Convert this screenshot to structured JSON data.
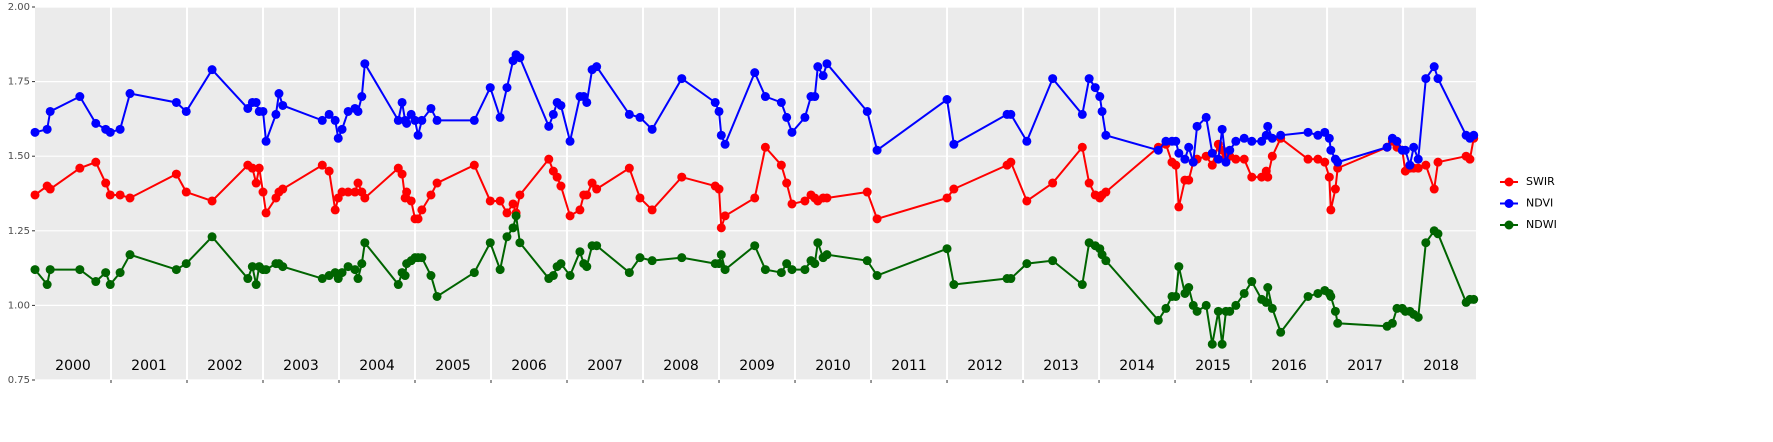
{
  "chart_data": {
    "type": "line",
    "x": [
      2000.0,
      2000.16,
      2000.2,
      2000.59,
      2000.8,
      2000.93,
      2000.99,
      2001.12,
      2001.25,
      2001.86,
      2001.99,
      2002.33,
      2002.8,
      2002.86,
      2002.91,
      2002.95,
      2003.0,
      2003.04,
      2003.17,
      2003.21,
      2003.26,
      2003.78,
      2003.87,
      2003.95,
      2003.99,
      2004.04,
      2004.12,
      2004.21,
      2004.25,
      2004.3,
      2004.34,
      2004.78,
      2004.83,
      2004.87,
      2004.89,
      2004.95,
      2005.0,
      2005.04,
      2005.09,
      2005.21,
      2005.29,
      2005.78,
      2005.99,
      2006.12,
      2006.21,
      2006.29,
      2006.33,
      2006.38,
      2006.76,
      2006.82,
      2006.87,
      2006.92,
      2007.04,
      2007.17,
      2007.22,
      2007.26,
      2007.33,
      2007.39,
      2007.82,
      2007.96,
      2008.12,
      2008.51,
      2008.95,
      2009.0,
      2009.03,
      2009.08,
      2009.47,
      2009.61,
      2009.82,
      2009.89,
      2009.96,
      2010.13,
      2010.21,
      2010.26,
      2010.3,
      2010.37,
      2010.42,
      2010.95,
      2011.08,
      2012.0,
      2012.09,
      2012.79,
      2012.84,
      2013.05,
      2013.39,
      2013.78,
      2013.87,
      2013.95,
      2014.01,
      2014.04,
      2014.09,
      2014.78,
      2014.88,
      2014.96,
      2015.01,
      2015.05,
      2015.13,
      2015.18,
      2015.24,
      2015.29,
      2015.41,
      2015.49,
      2015.57,
      2015.62,
      2015.67,
      2015.72,
      2015.8,
      2015.91,
      2016.01,
      2016.14,
      2016.2,
      2016.22,
      2016.28,
      2016.39,
      2016.75,
      2016.88,
      2016.97,
      2017.03,
      2017.05,
      2017.11,
      2017.14,
      2017.79,
      2017.86,
      2017.92,
      2017.99,
      2018.03,
      2018.09,
      2018.14,
      2018.2,
      2018.3,
      2018.41,
      2018.46,
      2018.83,
      2018.88,
      2018.93
    ],
    "series": [
      {
        "name": "SWIR",
        "color": "#ff0000",
        "values": [
          1.37,
          1.4,
          1.39,
          1.46,
          1.48,
          1.41,
          1.37,
          1.37,
          1.36,
          1.44,
          1.38,
          1.35,
          1.47,
          1.46,
          1.41,
          1.46,
          1.38,
          1.31,
          1.36,
          1.38,
          1.39,
          1.47,
          1.45,
          1.32,
          1.36,
          1.38,
          1.38,
          1.38,
          1.41,
          1.38,
          1.36,
          1.46,
          1.44,
          1.36,
          1.38,
          1.35,
          1.29,
          1.29,
          1.32,
          1.37,
          1.41,
          1.47,
          1.35,
          1.35,
          1.31,
          1.34,
          1.31,
          1.37,
          1.49,
          1.45,
          1.43,
          1.4,
          1.3,
          1.32,
          1.37,
          1.37,
          1.41,
          1.39,
          1.46,
          1.36,
          1.32,
          1.43,
          1.4,
          1.39,
          1.26,
          1.3,
          1.36,
          1.53,
          1.47,
          1.41,
          1.34,
          1.35,
          1.37,
          1.36,
          1.35,
          1.36,
          1.36,
          1.38,
          1.29,
          1.36,
          1.39,
          1.47,
          1.48,
          1.35,
          1.41,
          1.53,
          1.41,
          1.37,
          1.36,
          1.37,
          1.38,
          1.53,
          1.54,
          1.48,
          1.47,
          1.33,
          1.42,
          1.42,
          1.48,
          1.49,
          1.5,
          1.47,
          1.54,
          1.52,
          1.5,
          1.5,
          1.49,
          1.49,
          1.43,
          1.43,
          1.45,
          1.43,
          1.5,
          1.56,
          1.49,
          1.49,
          1.48,
          1.43,
          1.32,
          1.39,
          1.46,
          1.53,
          1.55,
          1.53,
          1.52,
          1.45,
          1.46,
          1.46,
          1.46,
          1.47,
          1.39,
          1.48,
          1.5,
          1.49,
          1.56
        ]
      },
      {
        "name": "NDVI",
        "color": "#0000ff",
        "values": [
          1.58,
          1.59,
          1.65,
          1.7,
          1.61,
          1.59,
          1.58,
          1.59,
          1.71,
          1.68,
          1.65,
          1.79,
          1.66,
          1.68,
          1.68,
          1.65,
          1.65,
          1.55,
          1.64,
          1.71,
          1.67,
          1.62,
          1.64,
          1.62,
          1.56,
          1.59,
          1.65,
          1.66,
          1.65,
          1.7,
          1.81,
          1.62,
          1.68,
          1.62,
          1.61,
          1.64,
          1.62,
          1.57,
          1.62,
          1.66,
          1.62,
          1.62,
          1.73,
          1.63,
          1.73,
          1.82,
          1.84,
          1.83,
          1.6,
          1.64,
          1.68,
          1.67,
          1.55,
          1.7,
          1.7,
          1.68,
          1.79,
          1.8,
          1.64,
          1.63,
          1.59,
          1.76,
          1.68,
          1.65,
          1.57,
          1.54,
          1.78,
          1.7,
          1.68,
          1.63,
          1.58,
          1.63,
          1.7,
          1.7,
          1.8,
          1.77,
          1.81,
          1.65,
          1.52,
          1.69,
          1.54,
          1.64,
          1.64,
          1.55,
          1.76,
          1.64,
          1.76,
          1.73,
          1.7,
          1.65,
          1.57,
          1.52,
          1.55,
          1.55,
          1.55,
          1.51,
          1.49,
          1.53,
          1.48,
          1.6,
          1.63,
          1.51,
          1.49,
          1.59,
          1.48,
          1.52,
          1.55,
          1.56,
          1.55,
          1.55,
          1.57,
          1.6,
          1.56,
          1.57,
          1.58,
          1.57,
          1.58,
          1.56,
          1.52,
          1.49,
          1.48,
          1.53,
          1.56,
          1.55,
          1.52,
          1.52,
          1.47,
          1.53,
          1.49,
          1.76,
          1.8,
          1.76,
          1.57,
          1.56,
          1.57
        ]
      },
      {
        "name": "NDWI",
        "color": "#006400",
        "values": [
          1.12,
          1.07,
          1.12,
          1.12,
          1.08,
          1.11,
          1.07,
          1.11,
          1.17,
          1.12,
          1.14,
          1.23,
          1.09,
          1.13,
          1.07,
          1.13,
          1.12,
          1.12,
          1.14,
          1.14,
          1.13,
          1.09,
          1.1,
          1.11,
          1.09,
          1.11,
          1.13,
          1.12,
          1.09,
          1.14,
          1.21,
          1.07,
          1.11,
          1.1,
          1.14,
          1.15,
          1.16,
          1.16,
          1.16,
          1.1,
          1.03,
          1.11,
          1.21,
          1.12,
          1.23,
          1.26,
          1.3,
          1.21,
          1.09,
          1.1,
          1.13,
          1.14,
          1.1,
          1.18,
          1.14,
          1.13,
          1.2,
          1.2,
          1.11,
          1.16,
          1.15,
          1.16,
          1.14,
          1.14,
          1.17,
          1.12,
          1.2,
          1.12,
          1.11,
          1.14,
          1.12,
          1.12,
          1.15,
          1.14,
          1.21,
          1.16,
          1.17,
          1.15,
          1.1,
          1.19,
          1.07,
          1.09,
          1.09,
          1.14,
          1.15,
          1.07,
          1.21,
          1.2,
          1.19,
          1.17,
          1.15,
          0.95,
          0.99,
          1.03,
          1.03,
          1.13,
          1.04,
          1.06,
          1.0,
          0.98,
          1.0,
          0.87,
          0.98,
          0.87,
          0.98,
          0.98,
          1.0,
          1.04,
          1.08,
          1.02,
          1.01,
          1.06,
          0.99,
          0.91,
          1.03,
          1.04,
          1.05,
          1.04,
          1.03,
          0.98,
          0.94,
          0.93,
          0.94,
          0.99,
          0.99,
          0.98,
          0.98,
          0.97,
          0.96,
          1.21,
          1.25,
          1.24,
          1.01,
          1.02,
          1.02
        ]
      }
    ],
    "xlim": [
      2000,
      2018.96
    ],
    "xticks": [
      2001,
      2002,
      2003,
      2004,
      2005,
      2006,
      2007,
      2008,
      2009,
      2010,
      2011,
      2012,
      2013,
      2014,
      2015,
      2016,
      2017,
      2018
    ],
    "year_labels": [
      "2000",
      "2001",
      "2002",
      "2003",
      "2004",
      "2005",
      "2006",
      "2007",
      "2008",
      "2009",
      "2010",
      "2011",
      "2012",
      "2013",
      "2014",
      "2015",
      "2016",
      "2017",
      "2018"
    ],
    "ylim": [
      0.75,
      2.0
    ],
    "yticks": [
      {
        "value": 0.75,
        "label": "0.75"
      },
      {
        "value": 1.0,
        "label": "1.00"
      },
      {
        "value": 1.25,
        "label": "1.25"
      },
      {
        "value": 1.5,
        "label": "1.50"
      },
      {
        "value": 1.75,
        "label": "1.75"
      },
      {
        "value": 2.0,
        "label": "2.00"
      }
    ],
    "grid": true,
    "legend": "right"
  }
}
